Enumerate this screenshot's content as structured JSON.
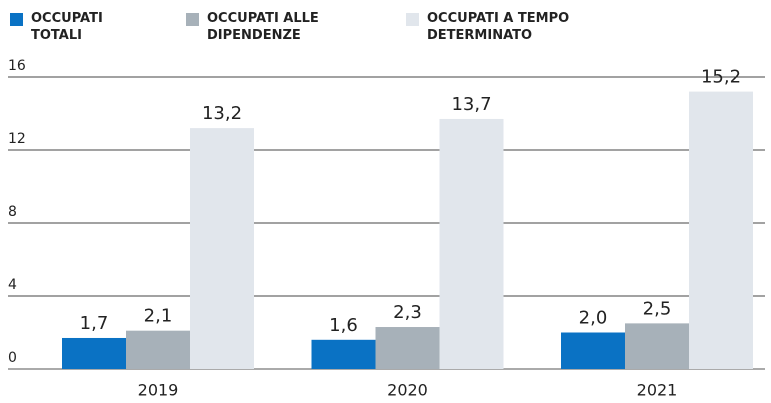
{
  "chart_data": {
    "type": "bar",
    "categories": [
      "2019",
      "2020",
      "2021"
    ],
    "series": [
      {
        "name": "OCCUPATI TOTALI",
        "color": "#0a72c4",
        "values": [
          1.7,
          1.6,
          2.0
        ],
        "value_labels": [
          "1,7",
          "1,6",
          "2,0"
        ]
      },
      {
        "name": "OCCUPATI ALLE DIPENDENZE",
        "color": "#a7b1b9",
        "values": [
          2.1,
          2.3,
          2.5
        ],
        "value_labels": [
          "2,1",
          "2,3",
          "2,5"
        ]
      },
      {
        "name": "OCCUPATI A TEMPO DETERMINATO",
        "color": "#e1e6ec",
        "values": [
          13.2,
          13.7,
          15.2
        ],
        "value_labels": [
          "13,2",
          "13,7",
          "15,2"
        ]
      }
    ],
    "ylim": [
      0,
      16
    ],
    "yticks": [
      0,
      4,
      8,
      12,
      16
    ],
    "grid": true
  }
}
